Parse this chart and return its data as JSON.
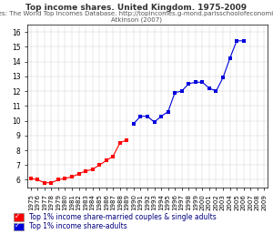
{
  "title": "Top income shares. United Kingdom. 1975-2009",
  "sources_line1": "Sources: The World Top Incomes Database. http://topincomes.g-mond.parisschoolofeconomics.eu/",
  "sources_line2": "Atkinson (2007)",
  "years": [
    1975,
    1976,
    1977,
    1978,
    1979,
    1980,
    1981,
    1982,
    1983,
    1984,
    1985,
    1986,
    1987,
    1988,
    1989,
    1990,
    1991,
    1992,
    1993,
    1994,
    1995,
    1996,
    1997,
    1998,
    1999,
    2000,
    2001,
    2002,
    2003,
    2004,
    2005,
    2006,
    2007,
    2008,
    2009
  ],
  "red_series": [
    6.1,
    6.0,
    5.8,
    5.8,
    6.0,
    6.1,
    6.2,
    6.4,
    6.6,
    6.7,
    7.0,
    7.3,
    7.6,
    8.5,
    8.7,
    null,
    null,
    null,
    null,
    null,
    null,
    null,
    null,
    null,
    null,
    null,
    null,
    null,
    null,
    null,
    null,
    null,
    null,
    null,
    null
  ],
  "blue_series": [
    null,
    null,
    null,
    null,
    null,
    null,
    null,
    null,
    null,
    null,
    null,
    null,
    null,
    null,
    null,
    9.8,
    10.3,
    10.3,
    9.9,
    10.3,
    10.6,
    11.9,
    12.0,
    12.5,
    12.6,
    12.6,
    12.2,
    12.0,
    12.9,
    14.2,
    15.4,
    15.4,
    null,
    null,
    null
  ],
  "ylim": [
    5.5,
    16.5
  ],
  "yticks": [
    6,
    7,
    8,
    9,
    10,
    11,
    12,
    13,
    14,
    15,
    16
  ],
  "red_color": "#ff0000",
  "blue_color": "#0000dd",
  "legend1": "Top 1% income share-married couples & single adults",
  "legend2": "Top 1% income share-adults",
  "title_fontsize": 6.5,
  "sources_fontsize": 5.0,
  "legend_fontsize": 5.5,
  "tick_fontsize": 5.0,
  "ytick_fontsize": 5.5
}
